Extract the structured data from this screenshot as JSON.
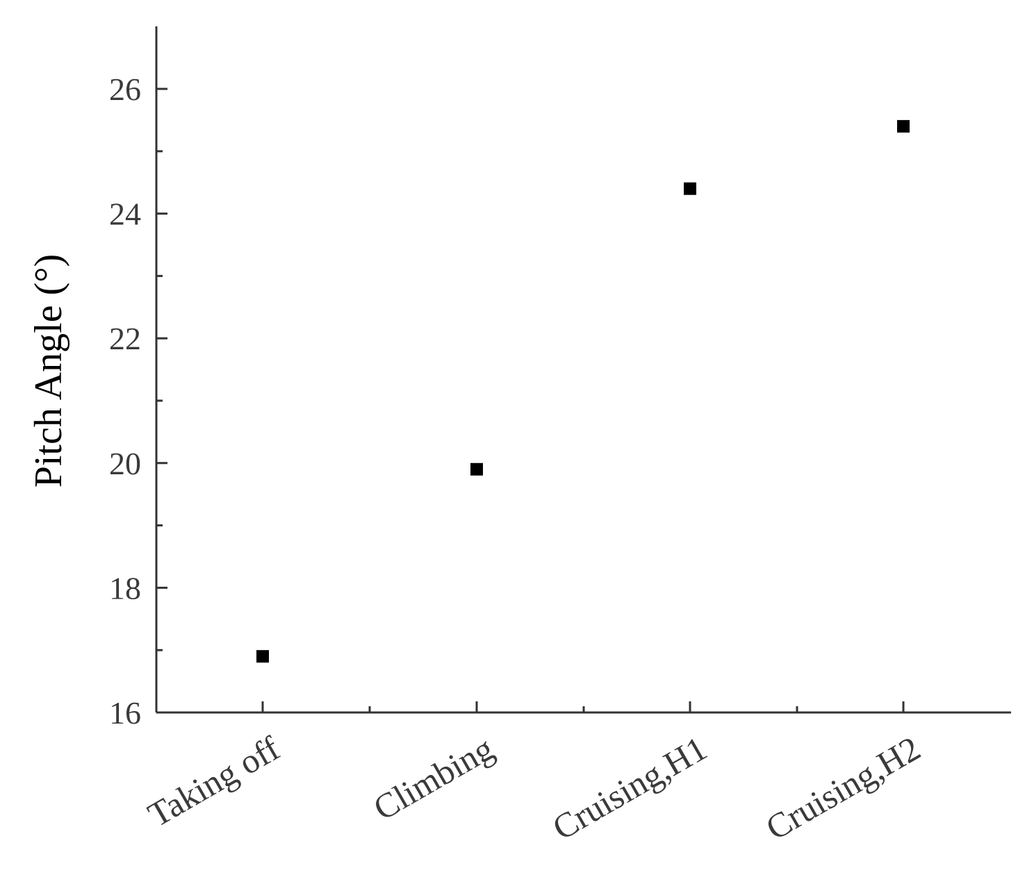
{
  "chart_data": {
    "type": "scatter",
    "title": "",
    "xlabel": "",
    "ylabel": "Pitch Angle (°)",
    "categories": [
      "Taking off",
      "Climbing",
      "Cruising,H1",
      "Cruising,H2"
    ],
    "series": [
      {
        "values": [
          16.9,
          19.9,
          24.4,
          25.4
        ]
      }
    ],
    "ylim": [
      16,
      27
    ],
    "y_ticks": [
      16,
      18,
      20,
      22,
      24,
      26
    ],
    "y_minor_ticks": [
      17,
      19,
      21,
      23,
      25
    ],
    "grid": false,
    "legend": "none",
    "colors": {
      "marker": "#000000",
      "axis": "#333333",
      "tick_label": "#3a3a3a"
    },
    "marker_shape": "square"
  }
}
